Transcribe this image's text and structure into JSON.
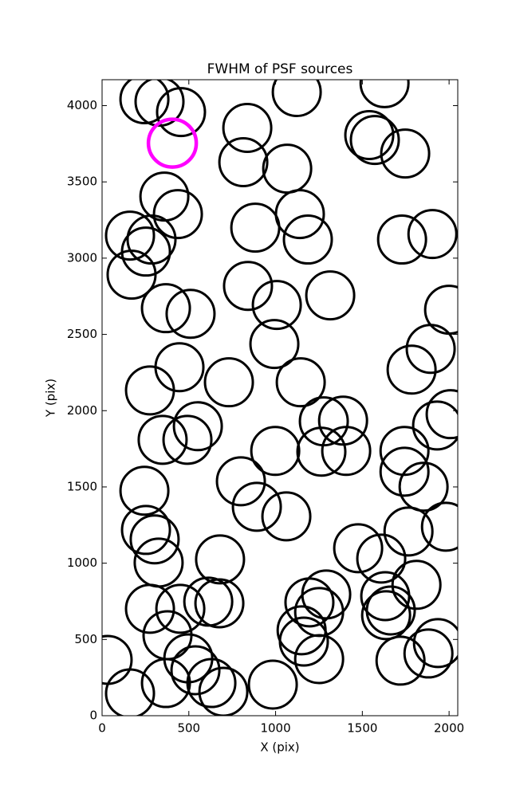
{
  "chart_data": {
    "type": "scatter",
    "title": "FWHM of PSF sources",
    "x_label": "X (pix)",
    "y_label": "Y (pix)",
    "xlim": [
      0,
      2050
    ],
    "ylim": [
      0,
      4170
    ],
    "xticks": [
      0,
      500,
      1000,
      1500,
      2000
    ],
    "yticks": [
      0,
      500,
      1000,
      1500,
      2000,
      2500,
      3000,
      3500,
      4000
    ],
    "grid": false,
    "series": [
      {
        "color": "#000000",
        "x": [
          244,
          331,
          455,
          1122,
          1628,
          837,
          1540,
          1572,
          1747,
          814,
          1067,
          359,
          437,
          1140,
          161,
          285,
          253,
          883,
          1186,
          1904,
          1729,
          170,
          368,
          510,
          841,
          1007,
          1315,
          2000,
          993,
          1894,
          446,
          276,
          731,
          1145,
          1784,
          1278,
          1389,
          552,
          349,
          492,
          2009,
          1931,
          998,
          1264,
          1407,
          1743,
          244,
          800,
          892,
          1743,
          1853,
          1062,
          253,
          303,
          326,
          680,
          1476,
          1609,
          1766,
          1982,
          276,
          451,
          612,
          676,
          377,
          1812,
          1292,
          1195,
          1251,
          1632,
          1637,
          1664,
          1150,
          1163,
          497,
          538,
          630,
          699,
          368,
          161,
          32,
          984,
          1251,
          1720,
          1881,
          1936
        ],
        "y": [
          4042,
          4026,
          3958,
          4089,
          4147,
          3854,
          3807,
          3775,
          3686,
          3629,
          3587,
          3404,
          3289,
          3289,
          3148,
          3122,
          3043,
          3200,
          3122,
          3158,
          3122,
          2892,
          2672,
          2635,
          2818,
          2693,
          2756,
          2662,
          2437,
          2405,
          2285,
          2133,
          2186,
          2186,
          2269,
          1930,
          1935,
          1898,
          1809,
          1809,
          1977,
          1903,
          1736,
          1731,
          1736,
          1736,
          1475,
          1537,
          1370,
          1600,
          1501,
          1307,
          1218,
          1156,
          1004,
          1025,
          1098,
          1030,
          1208,
          1239,
          701,
          701,
          748,
          737,
          528,
          858,
          795,
          743,
          680,
          784,
          659,
          690,
          560,
          486,
          376,
          298,
          214,
          157,
          214,
          146,
          366,
          204,
          371,
          361,
          408,
          476
        ]
      },
      {
        "color": "#ff00ff",
        "x": [
          405
        ],
        "y": [
          3754
        ]
      }
    ]
  }
}
